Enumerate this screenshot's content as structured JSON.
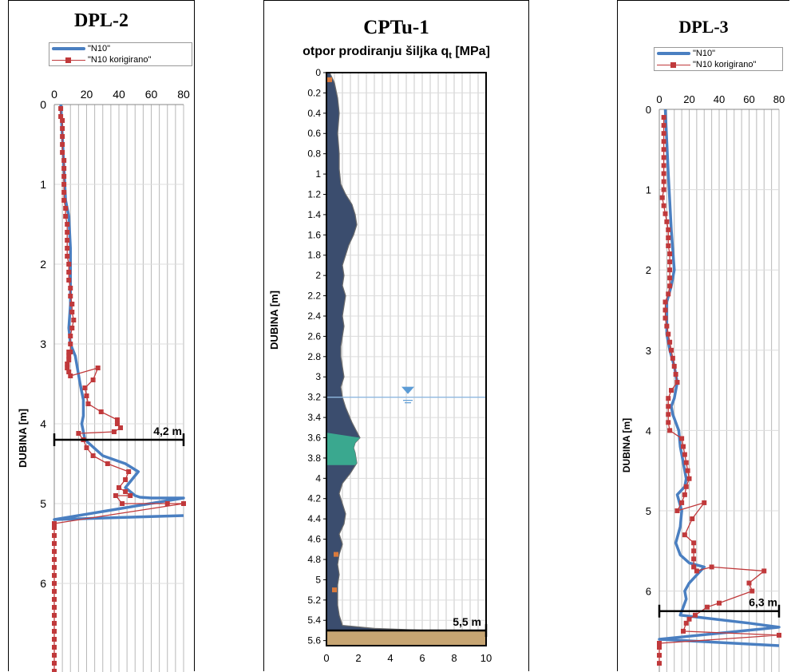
{
  "chart_data": [
    {
      "id": "dpl2",
      "type": "line",
      "title": "DPL-2",
      "ylabel": "DUBINA [m]",
      "xlim": [
        0,
        80
      ],
      "ylim": [
        0,
        6.7
      ],
      "x_ticks": [
        "0",
        "20",
        "40",
        "60",
        "80"
      ],
      "y_ticks": [
        "0",
        "1",
        "2",
        "3",
        "4",
        "5",
        "6"
      ],
      "annotation": {
        "text": "4,2 m",
        "depth": 4.2
      },
      "series": [
        {
          "name": "\"N10\"",
          "color": "#4a7fc1",
          "marker": false,
          "x": [
            4,
            5,
            6,
            7,
            9,
            10,
            10,
            10,
            9,
            10,
            13,
            16,
            18,
            18,
            17,
            19,
            30,
            44,
            52,
            48,
            44,
            50,
            53,
            60,
            80,
            0,
            80
          ],
          "y": [
            0,
            0.4,
            0.8,
            1.2,
            1.4,
            1.8,
            2.2,
            2.5,
            2.8,
            3.0,
            3.15,
            3.5,
            3.7,
            3.9,
            4.0,
            4.2,
            4.4,
            4.5,
            4.6,
            4.7,
            4.8,
            4.9,
            4.92,
            4.93,
            4.93,
            5.2,
            5.15
          ]
        },
        {
          "name": "\"N10 korigirano\"",
          "color": "#c0393b",
          "marker": true,
          "x": [
            4,
            4,
            5,
            5,
            5,
            5,
            5,
            6,
            6,
            6,
            6,
            6,
            6,
            7,
            7,
            8,
            8,
            8,
            8,
            8,
            9,
            9,
            9,
            10,
            10,
            11,
            11,
            12,
            11,
            10,
            10,
            10,
            9,
            9,
            9,
            8,
            8,
            9,
            10,
            27,
            24,
            19,
            20,
            21,
            29,
            39,
            39,
            41,
            37,
            15,
            18,
            20,
            24,
            33,
            46,
            44,
            40,
            44,
            47,
            38,
            42,
            70,
            80,
            0,
            0,
            0,
            0,
            0,
            0,
            0,
            0,
            0,
            0,
            0,
            0,
            0,
            0,
            0,
            0,
            0,
            0,
            0,
            0
          ],
          "y": [
            0.05,
            0.15,
            0.2,
            0.3,
            0.4,
            0.5,
            0.6,
            0.7,
            0.8,
            0.9,
            1.0,
            1.1,
            1.2,
            1.3,
            1.4,
            1.5,
            1.6,
            1.7,
            1.8,
            1.9,
            2.0,
            2.1,
            2.2,
            2.3,
            2.4,
            2.5,
            2.6,
            2.7,
            2.8,
            2.9,
            3.0,
            3.1,
            3.1,
            3.15,
            3.2,
            3.25,
            3.3,
            3.35,
            3.4,
            3.3,
            3.45,
            3.55,
            3.65,
            3.75,
            3.85,
            3.95,
            4.0,
            4.05,
            4.1,
            4.12,
            4.2,
            4.3,
            4.4,
            4.5,
            4.6,
            4.7,
            4.8,
            4.85,
            4.9,
            4.9,
            5.0,
            5.0,
            5.0,
            5.25,
            5.3,
            5.4,
            5.5,
            5.6,
            5.7,
            5.8,
            5.9,
            6.0,
            6.1,
            6.2,
            6.3,
            6.4,
            6.5,
            6.6,
            6.7,
            6.8,
            6.9,
            7.0,
            7.1
          ]
        }
      ]
    },
    {
      "id": "cptu1",
      "type": "area",
      "title": "CPTu-1",
      "subtitle_main": "otpor prodiranju šiljka q",
      "subtitle_sub": "t",
      "subtitle_unit": " [MPa]",
      "ylabel": "DUBINA [m]",
      "xlim": [
        0,
        10
      ],
      "ylim": [
        0,
        5.65
      ],
      "x_ticks": [
        "0",
        "2",
        "4",
        "6",
        "8",
        "10"
      ],
      "y_ticks": [
        "0",
        "0.2",
        "0.4",
        "0.6",
        "0.8",
        "1",
        "1.2",
        "1.4",
        "1.6",
        "1.8",
        "2",
        "2.2",
        "2.4",
        "2.6",
        "2.8",
        "3",
        "3.2",
        "3.4",
        "3.6",
        "3.8",
        "4",
        "4.2",
        "4.4",
        "4.6",
        "4.8",
        "5",
        "5.2",
        "5.4",
        "5.6"
      ],
      "water_level": 3.2,
      "annotation": {
        "text": "5,5 m",
        "depth": 5.5
      },
      "qt": {
        "x": [
          0.2,
          0.5,
          0.7,
          0.8,
          0.7,
          0.8,
          0.8,
          0.9,
          1.2,
          1.6,
          1.8,
          1.9,
          1.7,
          1.4,
          1.2,
          1.0,
          1.1,
          1.0,
          1.2,
          1.1,
          1.0,
          1.1,
          1.0,
          0.9,
          0.9,
          1.0,
          1.1,
          0.9,
          1.0,
          1.2,
          1.6,
          2.1,
          1.8,
          1.7,
          1.8,
          1.9,
          1.5,
          1.0,
          0.8,
          1.0,
          1.2,
          1.1,
          0.8,
          1.0,
          0.8,
          0.7,
          0.8,
          0.7,
          0.7,
          0.7,
          0.8,
          0.9,
          1.0,
          3.0,
          10.0,
          10.0
        ],
        "y": [
          0,
          0.1,
          0.25,
          0.4,
          0.6,
          0.8,
          0.95,
          1.1,
          1.2,
          1.3,
          1.4,
          1.5,
          1.6,
          1.7,
          1.8,
          1.9,
          2.0,
          2.1,
          2.2,
          2.3,
          2.4,
          2.5,
          2.6,
          2.7,
          2.8,
          2.9,
          3.0,
          3.1,
          3.2,
          3.3,
          3.45,
          3.6,
          3.65,
          3.7,
          3.75,
          3.85,
          3.95,
          4.05,
          4.15,
          4.25,
          4.35,
          4.45,
          4.55,
          4.65,
          4.75,
          4.85,
          4.95,
          5.05,
          5.15,
          5.25,
          5.35,
          5.4,
          5.45,
          5.48,
          5.52,
          5.65
        ]
      },
      "layers": [
        {
          "name": "clay",
          "color": "#3b4d6e"
        },
        {
          "name": "sand",
          "color": "#3aa88f",
          "from": 3.55,
          "to": 3.87
        },
        {
          "name": "gravel",
          "color": "#c7a572",
          "from": 5.5,
          "to": 5.65
        }
      ]
    },
    {
      "id": "dpl3",
      "type": "line",
      "title": "DPL-3",
      "ylabel": "DUBINA [m]",
      "xlim": [
        0,
        80
      ],
      "ylim": [
        0,
        6.7
      ],
      "x_ticks": [
        "0",
        "20",
        "40",
        "60",
        "80"
      ],
      "y_ticks": [
        "0",
        "1",
        "2",
        "3",
        "4",
        "5",
        "6"
      ],
      "annotation": {
        "text": "6,3 m",
        "depth": 6.25
      },
      "series": [
        {
          "name": "\"N10\"",
          "color": "#4a7fc1",
          "marker": false,
          "x": [
            4,
            5,
            6,
            8,
            10,
            8,
            5,
            5,
            7,
            10,
            12,
            10,
            8,
            9,
            13,
            14,
            16,
            18,
            17,
            12,
            15,
            14,
            11,
            14,
            20,
            30,
            25,
            20,
            17,
            18,
            16,
            14,
            60,
            80,
            0,
            80
          ],
          "y": [
            0,
            0.4,
            0.8,
            1.5,
            2.0,
            2.2,
            2.4,
            2.8,
            3.0,
            3.2,
            3.4,
            3.6,
            3.7,
            3.8,
            4.0,
            4.2,
            4.4,
            4.6,
            4.7,
            4.8,
            5.0,
            5.2,
            5.4,
            5.55,
            5.65,
            5.7,
            5.8,
            5.9,
            6.0,
            6.1,
            6.2,
            6.3,
            6.4,
            6.45,
            6.6,
            6.68
          ]
        },
        {
          "name": "\"N10 korigirano\"",
          "color": "#c0393b",
          "marker": true,
          "x": [
            3,
            3,
            3,
            3,
            3,
            3,
            3,
            3,
            3,
            3,
            2,
            3,
            4,
            5,
            6,
            6,
            6,
            7,
            7,
            7,
            7,
            7,
            6,
            4,
            4,
            4,
            5,
            6,
            7,
            8,
            9,
            10,
            11,
            12,
            8,
            6,
            6,
            6,
            6,
            7,
            15,
            16,
            17,
            18,
            19,
            20,
            18,
            17,
            15,
            12,
            30,
            22,
            17,
            23,
            23,
            23,
            23,
            25,
            35,
            70,
            60,
            62,
            40,
            32,
            24,
            20,
            18,
            16,
            80,
            0,
            0,
            0,
            0
          ],
          "y": [
            0.1,
            0.2,
            0.3,
            0.4,
            0.5,
            0.6,
            0.7,
            0.8,
            0.9,
            1.0,
            1.1,
            1.2,
            1.3,
            1.4,
            1.5,
            1.6,
            1.7,
            1.8,
            1.9,
            2.0,
            2.1,
            2.2,
            2.3,
            2.4,
            2.5,
            2.6,
            2.7,
            2.8,
            2.9,
            3.0,
            3.1,
            3.2,
            3.3,
            3.4,
            3.5,
            3.6,
            3.7,
            3.8,
            3.9,
            4.0,
            4.1,
            4.2,
            4.3,
            4.4,
            4.5,
            4.6,
            4.7,
            4.8,
            4.9,
            5.0,
            4.9,
            5.1,
            5.3,
            5.4,
            5.5,
            5.6,
            5.7,
            5.75,
            5.7,
            5.75,
            5.9,
            6.0,
            6.15,
            6.2,
            6.3,
            6.35,
            6.4,
            6.5,
            6.55,
            6.65,
            6.7,
            6.8,
            6.9
          ]
        }
      ]
    }
  ]
}
